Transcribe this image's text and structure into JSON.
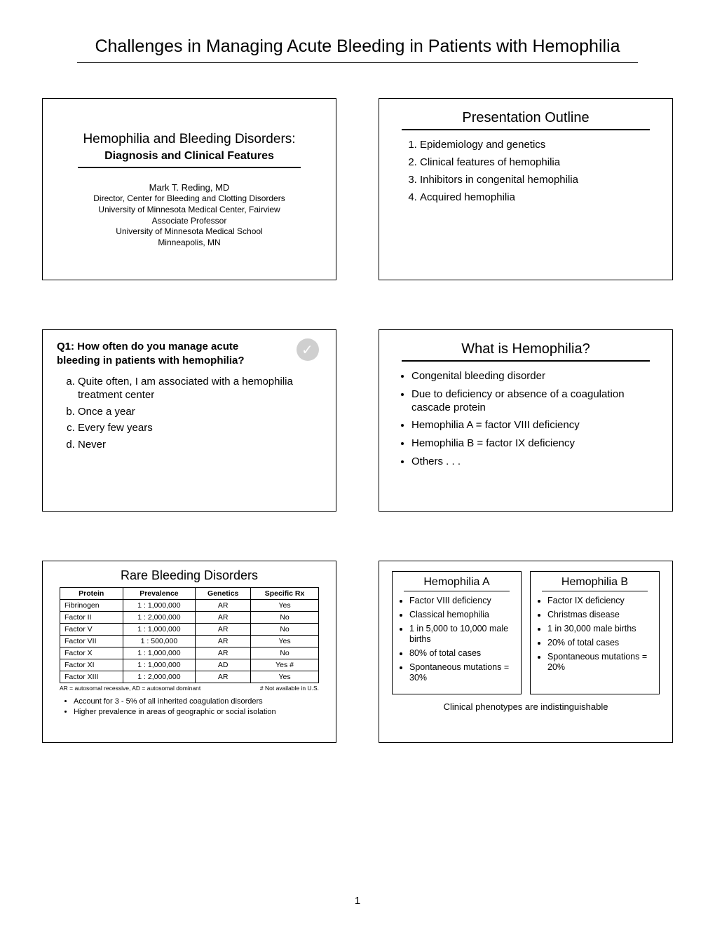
{
  "page_title": "Challenges in Managing Acute Bleeding in Patients with Hemophilia",
  "page_number": "1",
  "slide1": {
    "title": "Hemophilia and Bleeding Disorders:",
    "subtitle": "Diagnosis and Clinical Features",
    "author": "Mark T. Reding, MD",
    "aff1": "Director, Center for Bleeding and Clotting Disorders",
    "aff2": "University of Minnesota Medical Center, Fairview",
    "aff3": "Associate Professor",
    "aff4": "University of Minnesota Medical School",
    "aff5": "Minneapolis, MN"
  },
  "slide2": {
    "title": "Presentation Outline",
    "items": [
      "Epidemiology and genetics",
      "Clinical features of hemophilia",
      "Inhibitors in congenital hemophilia",
      "Acquired hemophilia"
    ]
  },
  "slide3": {
    "question": "Q1: How often do you manage acute bleeding in patients with hemophilia?",
    "options": [
      "Quite often, I am associated with a hemophilia treatment center",
      "Once a year",
      "Every few years",
      "Never"
    ]
  },
  "slide4": {
    "title": "What is Hemophilia?",
    "bullets": [
      "Congenital bleeding disorder",
      "Due to deficiency or absence of a coagulation cascade protein",
      "Hemophilia A = factor VIII deficiency",
      "Hemophilia B = factor IX deficiency",
      "Others . . ."
    ]
  },
  "slide5": {
    "title": "Rare Bleeding Disorders",
    "headers": [
      "Protein",
      "Prevalence",
      "Genetics",
      "Specific Rx"
    ],
    "rows": [
      [
        "Fibrinogen",
        "1 : 1,000,000",
        "AR",
        "Yes"
      ],
      [
        "Factor II",
        "1 : 2,000,000",
        "AR",
        "No"
      ],
      [
        "Factor V",
        "1 : 1,000,000",
        "AR",
        "No"
      ],
      [
        "Factor VII",
        "1 : 500,000",
        "AR",
        "Yes"
      ],
      [
        "Factor X",
        "1 : 1,000,000",
        "AR",
        "No"
      ],
      [
        "Factor XI",
        "1 : 1,000,000",
        "AD",
        "Yes #"
      ],
      [
        "Factor XIII",
        "1 : 2,000,000",
        "AR",
        "Yes"
      ]
    ],
    "foot_left": "AR = autosomal recessive, AD = autosomal dominant",
    "foot_right": "# Not available in U.S.",
    "notes": [
      "Account for 3 - 5% of all inherited coagulation disorders",
      "Higher prevalence in areas of geographic or social isolation"
    ]
  },
  "slide6": {
    "colA": {
      "title": "Hemophilia A",
      "items": [
        "Factor VIII deficiency",
        "Classical hemophilia",
        "1 in 5,000 to 10,000 male births",
        "80% of total cases",
        "Spontaneous mutations = 30%"
      ]
    },
    "colB": {
      "title": "Hemophilia B",
      "items": [
        "Factor IX deficiency",
        "Christmas disease",
        "1 in 30,000 male births",
        "20% of total cases",
        "Spontaneous mutations = 20%"
      ]
    },
    "footer": "Clinical phenotypes are indistinguishable"
  }
}
